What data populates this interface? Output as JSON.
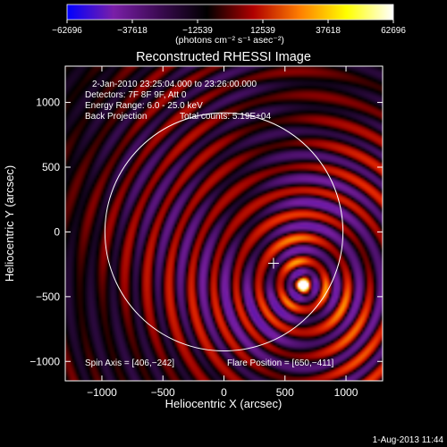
{
  "chart_data": {
    "type": "heatmap",
    "title": "Reconstructed RHESSI Image",
    "xlabel": "Heliocentric X (arcsec)",
    "ylabel": "Heliocentric Y (arcsec)",
    "xlim": [
      -1300,
      1300
    ],
    "ylim": [
      -1150,
      1280
    ],
    "x_ticks": [
      -1000,
      -500,
      0,
      500,
      1000
    ],
    "x_tick_labels": [
      "−1000",
      "−500",
      "0",
      "500",
      "1000"
    ],
    "y_ticks": [
      -1000,
      -500,
      0,
      500,
      1000
    ],
    "y_tick_labels": [
      "−1000",
      "−500",
      "0",
      "500",
      "1000"
    ],
    "colorbar": {
      "ticks": [
        "−62696",
        "−37618",
        "−12539",
        "12539",
        "37618",
        "62696"
      ],
      "range": [
        -62696,
        62696
      ],
      "units": "(photons cm⁻² s⁻¹ asec⁻²)",
      "colors": [
        "#0000ff",
        "#7a1fa8",
        "#3a0a50",
        "#000000",
        "#b00000",
        "#ff7f00",
        "#ffff00",
        "#ffffff"
      ]
    },
    "annotations": {
      "time_range": "2-Jan-2010 23:25:04.000 to 23:26:00.000",
      "detectors": "Detectors: 7F 8F 9F, Att 0",
      "energy_range": "Energy Range: 6.0 - 25.0 keV",
      "method": "Back Projection",
      "total_counts": "Total counts: 5.19E+04",
      "spin_axis": "Spin Axis = [406,−242]",
      "flare_position": "Flare Position = [650,−411]"
    },
    "solar_disk": {
      "center": [
        0,
        0
      ],
      "radius": 975
    },
    "spin_axis": [
      406,
      -242
    ],
    "flare_position": [
      650,
      -411
    ],
    "flare_peak_value": 62696,
    "grid": false,
    "footer_date": "1-Aug-2013 11:44"
  },
  "colors": {
    "background": "#000000",
    "foreground": "#ffffff"
  }
}
